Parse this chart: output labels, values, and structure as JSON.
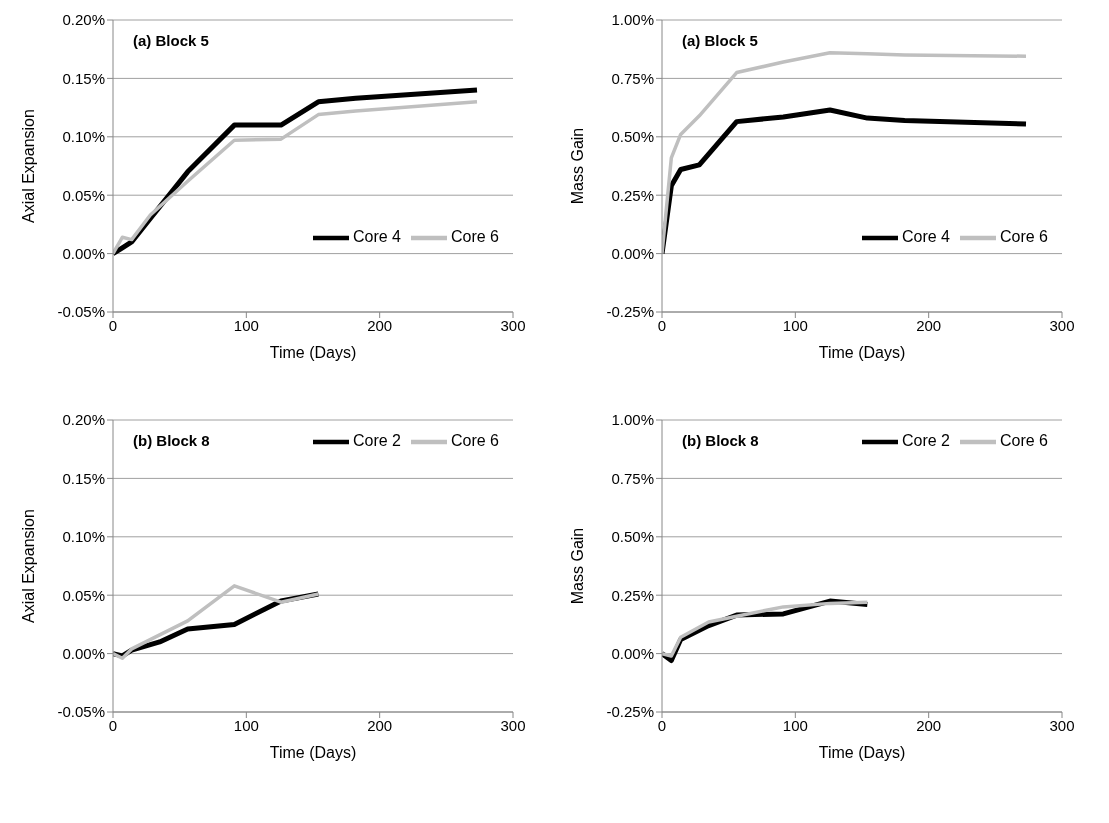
{
  "chart_data": [
    {
      "type": "line",
      "title": "(a) Block 5",
      "xlabel": "Time (Days)",
      "ylabel": "Axial Expansion",
      "xlim": [
        0,
        300
      ],
      "xticks": [
        0,
        100,
        200,
        300
      ],
      "ylim": [
        -0.05,
        0.2
      ],
      "yticks": [
        {
          "value": -0.05,
          "label": "-0.05%"
        },
        {
          "value": 0,
          "label": "0.00%"
        },
        {
          "value": 0.05,
          "label": "0.05%"
        },
        {
          "value": 0.1,
          "label": "0.10%"
        },
        {
          "value": 0.15,
          "label": "0.15%"
        },
        {
          "value": 0.2,
          "label": "0.20%"
        }
      ],
      "grid": "y",
      "legend": "bottom right",
      "series": [
        {
          "name": "Core 4",
          "color": "#000000",
          "x": [
            0,
            7,
            14,
            28,
            56,
            91,
            126,
            154,
            182,
            273
          ],
          "values": [
            0,
            0.005,
            0.01,
            0.03,
            0.07,
            0.11,
            0.11,
            0.13,
            0.133,
            0.14
          ]
        },
        {
          "name": "Core 6",
          "color": "#bfbfbf",
          "x": [
            0,
            7,
            14,
            28,
            56,
            91,
            126,
            154,
            182,
            273
          ],
          "values": [
            0,
            0.014,
            0.012,
            0.033,
            0.062,
            0.097,
            0.098,
            0.119,
            0.122,
            0.13
          ]
        }
      ]
    },
    {
      "type": "line",
      "title": "(a) Block 5",
      "xlabel": "Time (Days)",
      "ylabel": "Mass Gain",
      "xlim": [
        0,
        300
      ],
      "xticks": [
        0,
        100,
        200,
        300
      ],
      "ylim": [
        -0.25,
        1
      ],
      "yticks": [
        {
          "value": -0.25,
          "label": "-0.25%"
        },
        {
          "value": 0,
          "label": "0.00%"
        },
        {
          "value": 0.25,
          "label": "0.25%"
        },
        {
          "value": 0.5,
          "label": "0.50%"
        },
        {
          "value": 0.75,
          "label": "0.75%"
        },
        {
          "value": 1,
          "label": "1.00%"
        }
      ],
      "grid": "y",
      "legend": "bottom right",
      "series": [
        {
          "name": "Core 4",
          "color": "#000000",
          "x": [
            0,
            7,
            14,
            28,
            56,
            91,
            126,
            154,
            182,
            273
          ],
          "values": [
            0,
            0.29,
            0.36,
            0.38,
            0.565,
            0.585,
            0.615,
            0.58,
            0.57,
            0.555
          ]
        },
        {
          "name": "Core 6",
          "color": "#bfbfbf",
          "x": [
            0,
            7,
            14,
            28,
            56,
            91,
            126,
            154,
            182,
            273
          ],
          "values": [
            0,
            0.41,
            0.51,
            0.59,
            0.775,
            0.82,
            0.86,
            0.855,
            0.85,
            0.845
          ]
        }
      ]
    },
    {
      "type": "line",
      "title": "(b) Block 8",
      "xlabel": "Time (Days)",
      "ylabel": "Axial Expansion",
      "xlim": [
        0,
        300
      ],
      "xticks": [
        0,
        100,
        200,
        300
      ],
      "ylim": [
        -0.05,
        0.2
      ],
      "yticks": [
        {
          "value": -0.05,
          "label": "-0.05%"
        },
        {
          "value": 0,
          "label": "0.00%"
        },
        {
          "value": 0.05,
          "label": "0.05%"
        },
        {
          "value": 0.1,
          "label": "0.10%"
        },
        {
          "value": 0.15,
          "label": "0.15%"
        },
        {
          "value": 0.2,
          "label": "0.20%"
        }
      ],
      "grid": "y",
      "legend": "top right",
      "series": [
        {
          "name": "Core 2",
          "color": "#000000",
          "x": [
            0,
            7,
            14,
            35,
            56,
            91,
            126,
            154
          ],
          "values": [
            0,
            -0.002,
            0.003,
            0.01,
            0.021,
            0.025,
            0.045,
            0.051
          ]
        },
        {
          "name": "Core 6",
          "color": "#bfbfbf",
          "x": [
            0,
            7,
            14,
            35,
            56,
            91,
            126,
            154
          ],
          "values": [
            0,
            -0.004,
            0.004,
            0.016,
            0.028,
            0.058,
            0.044,
            0.051
          ]
        }
      ]
    },
    {
      "type": "line",
      "title": "(b) Block 8",
      "xlabel": "Time (Days)",
      "ylabel": "Mass Gain",
      "xlim": [
        0,
        300
      ],
      "xticks": [
        0,
        100,
        200,
        300
      ],
      "ylim": [
        -0.25,
        1
      ],
      "yticks": [
        {
          "value": -0.25,
          "label": "-0.25%"
        },
        {
          "value": 0,
          "label": "0.00%"
        },
        {
          "value": 0.25,
          "label": "0.25%"
        },
        {
          "value": 0.5,
          "label": "0.50%"
        },
        {
          "value": 0.75,
          "label": "0.75%"
        },
        {
          "value": 1,
          "label": "1.00%"
        }
      ],
      "grid": "y",
      "legend": "top right",
      "series": [
        {
          "name": "Core 2",
          "color": "#000000",
          "x": [
            0,
            7,
            14,
            35,
            56,
            91,
            126,
            154
          ],
          "values": [
            0,
            -0.03,
            0.06,
            0.12,
            0.165,
            0.17,
            0.225,
            0.21
          ]
        },
        {
          "name": "Core 6",
          "color": "#bfbfbf",
          "x": [
            0,
            7,
            14,
            35,
            56,
            91,
            126,
            154
          ],
          "values": [
            0,
            -0.01,
            0.07,
            0.135,
            0.16,
            0.2,
            0.215,
            0.22
          ]
        }
      ]
    }
  ]
}
